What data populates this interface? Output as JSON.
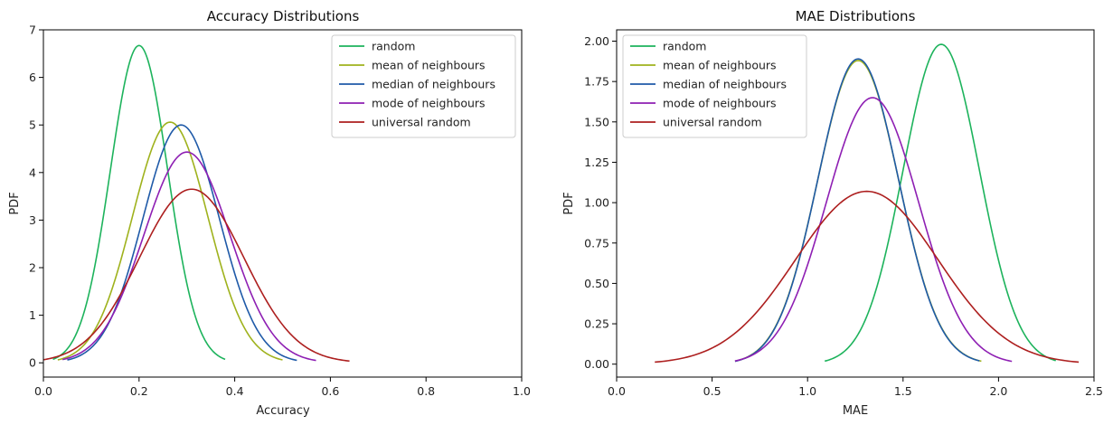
{
  "chart_data": [
    {
      "type": "line",
      "title": "Accuracy Distributions",
      "xlabel": "Accuracy",
      "ylabel": "PDF",
      "xlim": [
        0.0,
        1.0
      ],
      "ylim": [
        -0.3,
        7.0
      ],
      "xticks": [
        "0.0",
        "0.2",
        "0.4",
        "0.6",
        "0.8",
        "1.0"
      ],
      "yticks": [
        "0",
        "1",
        "2",
        "3",
        "4",
        "5",
        "6",
        "7"
      ],
      "legend_position": "top-right",
      "series": [
        {
          "name": "random",
          "color": "#1db35c",
          "distribution": "normal",
          "mean": 0.2,
          "std": 0.06,
          "x_range": [
            0.02,
            0.38
          ],
          "peak": 6.67
        },
        {
          "name": "mean of neighbours",
          "color": "#9fb21d",
          "distribution": "normal",
          "mean": 0.265,
          "std": 0.079,
          "x_range": [
            0.03,
            0.5
          ],
          "peak": 5.06
        },
        {
          "name": "median of neighbours",
          "color": "#1f5aa8",
          "distribution": "normal",
          "mean": 0.288,
          "std": 0.08,
          "x_range": [
            0.05,
            0.53
          ],
          "peak": 5.0
        },
        {
          "name": "mode of neighbours",
          "color": "#8e1fb3",
          "distribution": "normal",
          "mean": 0.3,
          "std": 0.09,
          "x_range": [
            0.04,
            0.57
          ],
          "peak": 4.43
        },
        {
          "name": "universal random",
          "color": "#ad1f1f",
          "distribution": "normal",
          "mean": 0.31,
          "std": 0.109,
          "x_range": [
            0.0,
            0.64
          ],
          "peak": 3.65
        }
      ]
    },
    {
      "type": "line",
      "title": "MAE Distributions",
      "xlabel": "MAE",
      "ylabel": "PDF",
      "xlim": [
        0.0,
        2.5
      ],
      "ylim": [
        -0.08,
        2.07
      ],
      "xticks": [
        "0.0",
        "0.5",
        "1.0",
        "1.5",
        "2.0",
        "2.5"
      ],
      "yticks": [
        "0.00",
        "0.25",
        "0.50",
        "0.75",
        "1.00",
        "1.25",
        "1.50",
        "1.75",
        "2.00"
      ],
      "legend_position": "top-left",
      "series": [
        {
          "name": "random",
          "color": "#1db35c",
          "distribution": "normal",
          "mean": 1.7,
          "std": 0.2,
          "x_range": [
            1.09,
            2.3
          ],
          "peak": 1.98
        },
        {
          "name": "mean of neighbours",
          "color": "#9fb21d",
          "distribution": "normal",
          "mean": 1.265,
          "std": 0.212,
          "x_range": [
            0.62,
            1.91
          ],
          "peak": 1.88
        },
        {
          "name": "median of neighbours",
          "color": "#1f5aa8",
          "distribution": "normal",
          "mean": 1.265,
          "std": 0.211,
          "x_range": [
            0.62,
            1.9
          ],
          "peak": 1.89
        },
        {
          "name": "mode of neighbours",
          "color": "#8e1fb3",
          "distribution": "normal",
          "mean": 1.34,
          "std": 0.242,
          "x_range": [
            0.62,
            2.07
          ],
          "peak": 1.65
        },
        {
          "name": "universal random",
          "color": "#ad1f1f",
          "distribution": "normal",
          "mean": 1.31,
          "std": 0.372,
          "x_range": [
            0.2,
            2.42
          ],
          "peak": 1.07
        }
      ]
    }
  ]
}
